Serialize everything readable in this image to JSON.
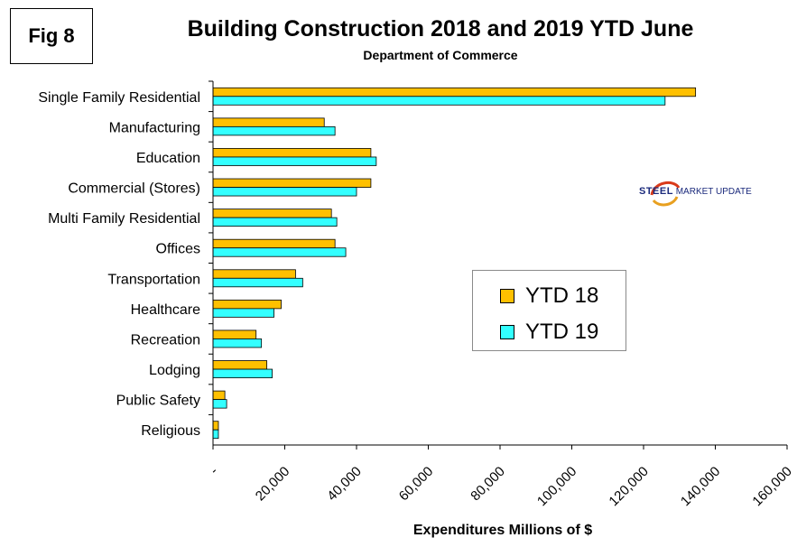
{
  "fig_label": "Fig 8",
  "chart_data": {
    "type": "bar",
    "orientation": "horizontal",
    "title": "Building Construction 2018 and 2019 YTD June",
    "subtitle": "Department of Commerce",
    "xlabel": "Expenditures Millions of $",
    "ylabel": "",
    "xlim": [
      0,
      160000
    ],
    "x_ticks": [
      "-",
      "20,000",
      "40,000",
      "60,000",
      "80,000",
      "100,000",
      "120,000",
      "140,000",
      "160,000"
    ],
    "x_tick_values": [
      0,
      20000,
      40000,
      60000,
      80000,
      100000,
      120000,
      140000,
      160000
    ],
    "categories": [
      "Single Family Residential",
      "Manufacturing",
      "Education",
      "Commercial (Stores)",
      "Multi Family Residential",
      "Offices",
      "Transportation",
      "Healthcare",
      "Recreation",
      "Lodging",
      "Public Safety",
      "Religious"
    ],
    "series": [
      {
        "name": "YTD 18",
        "color": "#FFC000",
        "values": [
          134500,
          31000,
          44000,
          44000,
          33000,
          34000,
          23000,
          19000,
          12000,
          15000,
          3300,
          1500
        ]
      },
      {
        "name": "YTD 19",
        "color": "#33FFFF",
        "values": [
          126000,
          34000,
          45500,
          40000,
          34500,
          37000,
          25000,
          17000,
          13500,
          16500,
          3800,
          1500
        ]
      }
    ],
    "grid": false,
    "legend_position": "center-right"
  },
  "logo": {
    "steel": "STEEL",
    "rest": " MARKET UPDATE"
  }
}
